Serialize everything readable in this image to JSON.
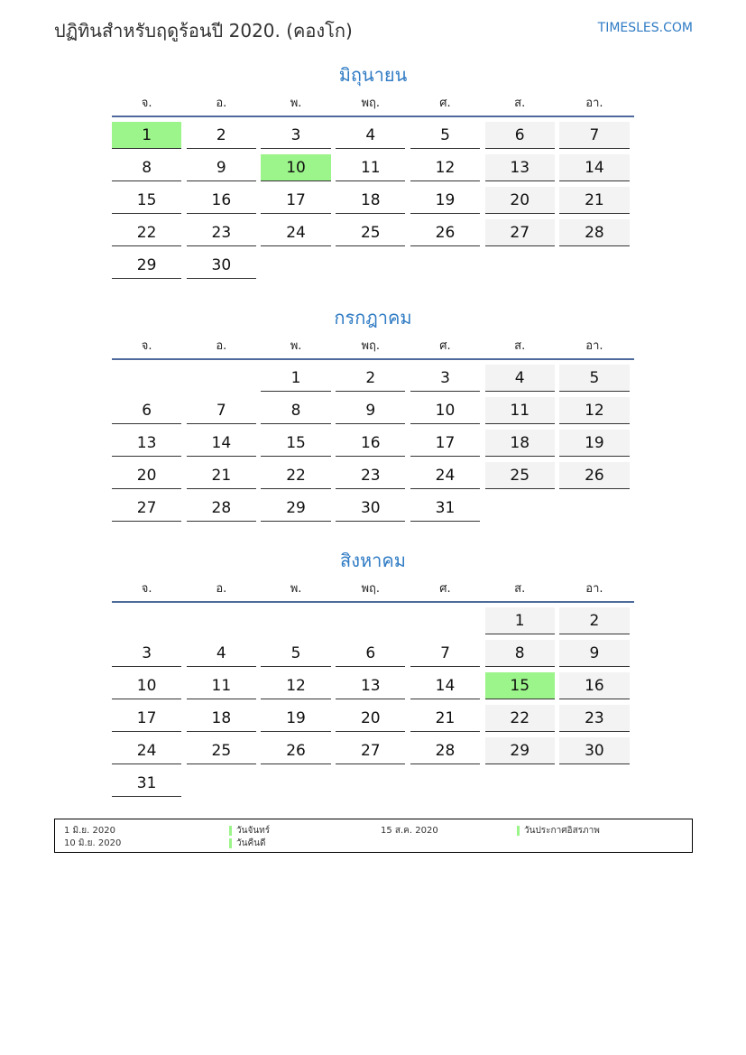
{
  "header": {
    "title": "ปฏิทินสำหรับฤดูร้อนปี 2020. (คองโก)",
    "site": "TIMESLES.COM"
  },
  "weekdays": [
    "จ.",
    "อ.",
    "พ.",
    "พฤ.",
    "ศ.",
    "ส.",
    "อา."
  ],
  "highlight_color": "#9cf58a",
  "months": [
    {
      "title": "มิถุนายน",
      "highlights": [
        1,
        10
      ],
      "weeks": [
        [
          1,
          2,
          3,
          4,
          5,
          6,
          7
        ],
        [
          8,
          9,
          10,
          11,
          12,
          13,
          14
        ],
        [
          15,
          16,
          17,
          18,
          19,
          20,
          21
        ],
        [
          22,
          23,
          24,
          25,
          26,
          27,
          28
        ],
        [
          29,
          30,
          null,
          null,
          null,
          null,
          null
        ]
      ]
    },
    {
      "title": "กรกฎาคม",
      "highlights": [],
      "weeks": [
        [
          null,
          null,
          1,
          2,
          3,
          4,
          5
        ],
        [
          6,
          7,
          8,
          9,
          10,
          11,
          12
        ],
        [
          13,
          14,
          15,
          16,
          17,
          18,
          19
        ],
        [
          20,
          21,
          22,
          23,
          24,
          25,
          26
        ],
        [
          27,
          28,
          29,
          30,
          31,
          null,
          null
        ]
      ]
    },
    {
      "title": "สิงหาคม",
      "highlights": [
        15
      ],
      "weeks": [
        [
          null,
          null,
          null,
          null,
          null,
          1,
          2
        ],
        [
          3,
          4,
          5,
          6,
          7,
          8,
          9
        ],
        [
          10,
          11,
          12,
          13,
          14,
          15,
          16
        ],
        [
          17,
          18,
          19,
          20,
          21,
          22,
          23
        ],
        [
          24,
          25,
          26,
          27,
          28,
          29,
          30
        ],
        [
          31,
          null,
          null,
          null,
          null,
          null,
          null
        ]
      ]
    }
  ],
  "legend": [
    {
      "date": "1 มิ.ย. 2020",
      "name": "วันจันทร์"
    },
    {
      "date": "10 มิ.ย. 2020",
      "name": "วันคืนดี"
    },
    {
      "date": "15 ส.ค. 2020",
      "name": "วันประกาศอิสรภาพ"
    }
  ]
}
